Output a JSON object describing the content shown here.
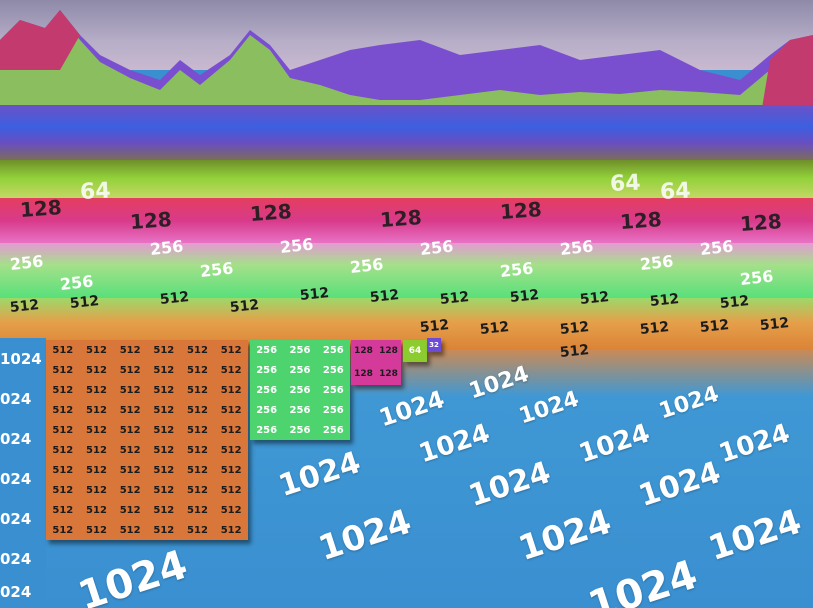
{
  "scene": {
    "edge_labels": [
      "1024",
      "024",
      "024",
      "024",
      "024",
      "024",
      "024",
      "024"
    ],
    "floor_1024": [
      "1024",
      "1024",
      "1024",
      "1024",
      "1024",
      "1024",
      "1024",
      "1024",
      "1024",
      "1024",
      "1024",
      "1024",
      "1024",
      "1024",
      "1024"
    ],
    "band_512": [
      "512",
      "512",
      "512",
      "512",
      "512",
      "512",
      "512",
      "512",
      "512",
      "512",
      "512",
      "512",
      "512",
      "512",
      "512",
      "512",
      "512",
      "512"
    ],
    "band_256": [
      "256",
      "256",
      "256",
      "256",
      "256",
      "256",
      "256",
      "256",
      "256",
      "256",
      "256",
      "256"
    ],
    "band_128": [
      "128",
      "128",
      "128",
      "128",
      "128",
      "128",
      "128"
    ],
    "band_64": [
      "64",
      "64",
      "64"
    ],
    "block_512": {
      "label": "512",
      "cells": 60
    },
    "block_256": {
      "label": "256",
      "cells": 15
    },
    "block_128": {
      "label": "128",
      "cells": 4
    },
    "block_64": {
      "label": "64"
    },
    "block_32": {
      "label": "32"
    }
  },
  "colors": {
    "sea": "#3a8fd0",
    "tile_512": "#d9763a",
    "tile_256": "#4ed46f",
    "tile_128": "#d43a9a",
    "tile_64": "#8ccc2e",
    "tile_32": "#6d4bd6"
  }
}
